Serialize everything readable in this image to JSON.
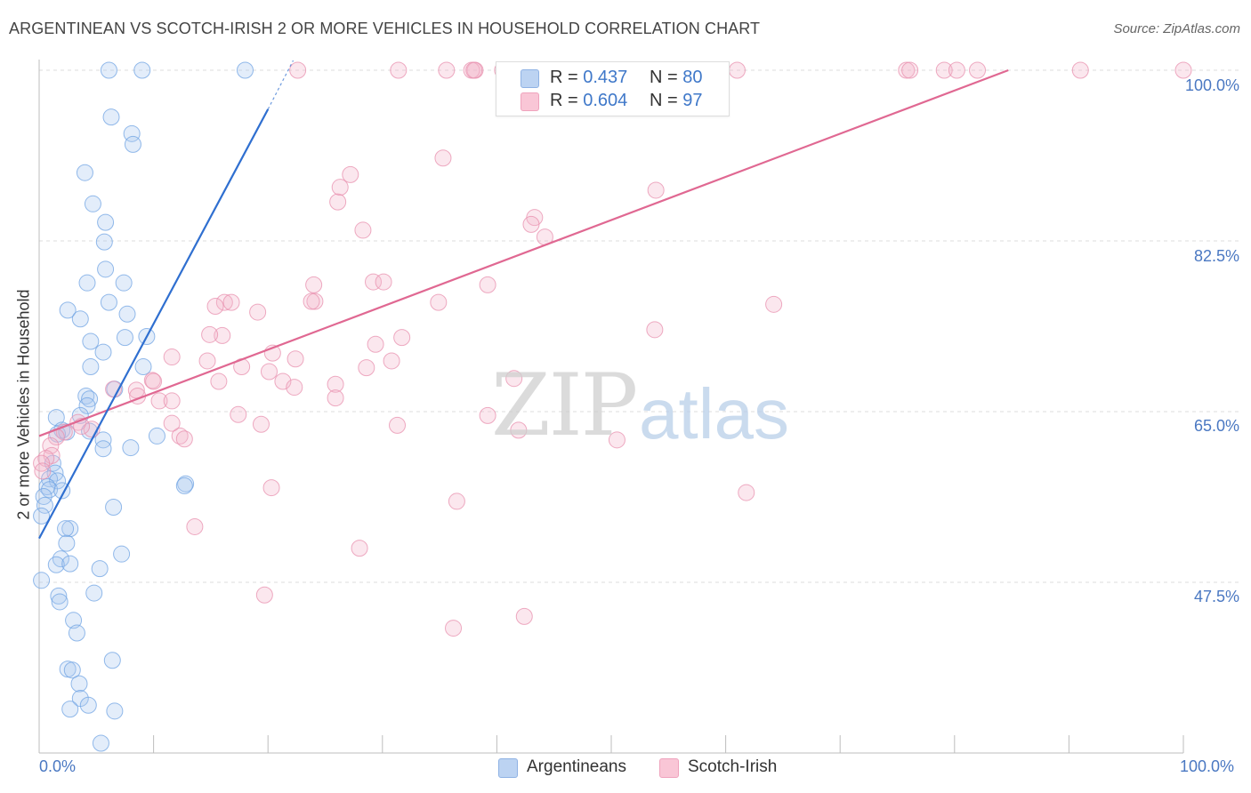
{
  "title": "ARGENTINEAN VS SCOTCH-IRISH 2 OR MORE VEHICLES IN HOUSEHOLD CORRELATION CHART",
  "source": "Source: ZipAtlas.com",
  "watermark": {
    "zip": "ZIP",
    "atlas": "atlas"
  },
  "legend_top": {
    "rows": [
      {
        "r_label": "R = ",
        "r_value": "0.437",
        "n_label": "N = ",
        "n_value": "80"
      },
      {
        "r_label": "R = ",
        "r_value": "0.604",
        "n_label": "N = ",
        "n_value": "97"
      }
    ]
  },
  "legend_bottom": [
    "Argentineans",
    "Scotch-Irish"
  ],
  "chart_data": {
    "type": "scatter",
    "title": "ARGENTINEAN VS SCOTCH-IRISH 2 OR MORE VEHICLES IN HOUSEHOLD CORRELATION CHART",
    "xlabel": "",
    "ylabel": "2 or more Vehicles in Household",
    "xlim": [
      0,
      100
    ],
    "ylim": [
      31,
      101.5
    ],
    "x_tick_labels": [
      "0.0%",
      "100.0%"
    ],
    "y_ticks": [
      47.5,
      65.0,
      82.5,
      100.0
    ],
    "y_tick_labels": [
      "47.5%",
      "65.0%",
      "82.5%",
      "100.0%"
    ],
    "grid": true,
    "colors": {
      "Argentineans": "#6fa3e3",
      "Scotch-Irish": "#f19ab6",
      "blue_line": "#2f6fd0",
      "pink_line": "#e06892"
    },
    "series": [
      {
        "name": "Argentineans",
        "r": 0.437,
        "n": 80,
        "trend": {
          "x": [
            0.0,
            20.0
          ],
          "y": [
            52.0,
            96.0
          ],
          "dashed_to": [
            22.2,
            101.0
          ]
        },
        "points": [
          [
            6.1,
            100
          ],
          [
            9.0,
            100
          ],
          [
            18.0,
            100
          ],
          [
            6.3,
            95.2
          ],
          [
            8.1,
            93.5
          ],
          [
            8.2,
            92.4
          ],
          [
            4.0,
            89.5
          ],
          [
            4.7,
            86.3
          ],
          [
            5.8,
            84.4
          ],
          [
            5.7,
            82.4
          ],
          [
            5.8,
            79.6
          ],
          [
            4.2,
            78.2
          ],
          [
            7.4,
            78.2
          ],
          [
            6.1,
            76.2
          ],
          [
            2.5,
            75.4
          ],
          [
            7.7,
            75.0
          ],
          [
            3.6,
            74.5
          ],
          [
            4.5,
            72.2
          ],
          [
            7.5,
            72.6
          ],
          [
            9.4,
            72.7
          ],
          [
            5.6,
            71.1
          ],
          [
            4.5,
            69.6
          ],
          [
            9.1,
            69.6
          ],
          [
            6.6,
            67.3
          ],
          [
            4.1,
            66.6
          ],
          [
            4.4,
            66.3
          ],
          [
            4.2,
            65.6
          ],
          [
            1.5,
            64.4
          ],
          [
            3.6,
            64.6
          ],
          [
            2.0,
            63.1
          ],
          [
            4.4,
            63.0
          ],
          [
            1.6,
            62.7
          ],
          [
            2.4,
            62.9
          ],
          [
            10.3,
            62.5
          ],
          [
            5.6,
            62.1
          ],
          [
            5.6,
            61.2
          ],
          [
            8.0,
            61.3
          ],
          [
            1.2,
            59.7
          ],
          [
            1.4,
            58.7
          ],
          [
            0.9,
            58.1
          ],
          [
            1.6,
            57.9
          ],
          [
            12.8,
            57.6
          ],
          [
            12.7,
            57.4
          ],
          [
            0.7,
            57.3
          ],
          [
            0.9,
            57.0
          ],
          [
            2.0,
            56.9
          ],
          [
            0.4,
            56.3
          ],
          [
            0.5,
            55.4
          ],
          [
            6.5,
            55.2
          ],
          [
            0.2,
            54.3
          ],
          [
            2.7,
            53.0
          ],
          [
            2.3,
            53.0
          ],
          [
            2.4,
            51.5
          ],
          [
            7.2,
            50.4
          ],
          [
            1.9,
            49.9
          ],
          [
            1.5,
            49.3
          ],
          [
            2.7,
            49.4
          ],
          [
            5.3,
            48.9
          ],
          [
            0.2,
            47.7
          ],
          [
            4.8,
            46.4
          ],
          [
            1.7,
            46.1
          ],
          [
            1.8,
            45.5
          ],
          [
            3.0,
            43.6
          ],
          [
            3.3,
            42.3
          ],
          [
            2.5,
            38.6
          ],
          [
            2.9,
            38.5
          ],
          [
            6.4,
            39.5
          ],
          [
            3.5,
            37.1
          ],
          [
            3.6,
            35.6
          ],
          [
            4.3,
            34.9
          ],
          [
            2.7,
            34.5
          ],
          [
            6.6,
            34.3
          ],
          [
            5.4,
            31.0
          ]
        ]
      },
      {
        "name": "Scotch-Irish",
        "r": 0.604,
        "n": 97,
        "trend": {
          "x": [
            0.0,
            84.7
          ],
          "y": [
            62.5,
            100.0
          ]
        },
        "points": [
          [
            22.6,
            100
          ],
          [
            31.4,
            100
          ],
          [
            35.6,
            100
          ],
          [
            38.1,
            100
          ],
          [
            37.8,
            100
          ],
          [
            38.0,
            100
          ],
          [
            40.5,
            100
          ],
          [
            47.3,
            100
          ],
          [
            56.4,
            100
          ],
          [
            61.0,
            100
          ],
          [
            75.8,
            100
          ],
          [
            76.1,
            100
          ],
          [
            79.1,
            100
          ],
          [
            82.0,
            100
          ],
          [
            80.2,
            100
          ],
          [
            91.0,
            100
          ],
          [
            100,
            100
          ],
          [
            35.3,
            91.0
          ],
          [
            27.2,
            89.3
          ],
          [
            26.3,
            88.0
          ],
          [
            53.9,
            87.7
          ],
          [
            26.1,
            86.5
          ],
          [
            43.3,
            84.9
          ],
          [
            43.0,
            84.2
          ],
          [
            28.3,
            83.6
          ],
          [
            44.2,
            82.9
          ],
          [
            29.2,
            78.3
          ],
          [
            30.1,
            78.3
          ],
          [
            24.0,
            78.0
          ],
          [
            39.2,
            78.0
          ],
          [
            16.2,
            76.2
          ],
          [
            16.8,
            76.2
          ],
          [
            24.1,
            76.3
          ],
          [
            23.8,
            76.3
          ],
          [
            15.4,
            75.8
          ],
          [
            34.9,
            76.2
          ],
          [
            64.2,
            76.0
          ],
          [
            19.1,
            75.2
          ],
          [
            53.8,
            73.4
          ],
          [
            16.0,
            72.8
          ],
          [
            31.7,
            72.6
          ],
          [
            14.9,
            72.9
          ],
          [
            29.4,
            71.9
          ],
          [
            20.4,
            71.0
          ],
          [
            11.6,
            70.6
          ],
          [
            30.8,
            70.2
          ],
          [
            14.7,
            70.2
          ],
          [
            22.4,
            70.4
          ],
          [
            28.6,
            69.5
          ],
          [
            41.5,
            68.4
          ],
          [
            20.1,
            69.1
          ],
          [
            17.7,
            69.6
          ],
          [
            15.7,
            68.1
          ],
          [
            21.3,
            68.1
          ],
          [
            25.9,
            67.8
          ],
          [
            22.3,
            67.5
          ],
          [
            9.9,
            68.2
          ],
          [
            10.0,
            68.1
          ],
          [
            6.5,
            67.3
          ],
          [
            8.5,
            67.2
          ],
          [
            8.6,
            66.6
          ],
          [
            10.5,
            66.1
          ],
          [
            11.6,
            66.1
          ],
          [
            25.9,
            66.4
          ],
          [
            17.4,
            64.7
          ],
          [
            39.2,
            64.6
          ],
          [
            41.9,
            63.1
          ],
          [
            50.5,
            62.1
          ],
          [
            31.3,
            63.6
          ],
          [
            12.3,
            62.5
          ],
          [
            12.7,
            62.2
          ],
          [
            19.4,
            63.7
          ],
          [
            11.6,
            63.8
          ],
          [
            4.6,
            63.2
          ],
          [
            3.4,
            63.9
          ],
          [
            3.7,
            63.5
          ],
          [
            2.2,
            62.9
          ],
          [
            1.5,
            62.4
          ],
          [
            1.0,
            61.5
          ],
          [
            1.1,
            60.5
          ],
          [
            0.6,
            60.2
          ],
          [
            0.2,
            59.7
          ],
          [
            0.3,
            58.9
          ],
          [
            20.3,
            57.2
          ],
          [
            61.8,
            56.7
          ],
          [
            36.5,
            55.8
          ],
          [
            13.6,
            53.2
          ],
          [
            28.0,
            51.0
          ],
          [
            19.7,
            46.2
          ],
          [
            42.4,
            44.0
          ],
          [
            36.2,
            42.8
          ]
        ]
      }
    ]
  }
}
